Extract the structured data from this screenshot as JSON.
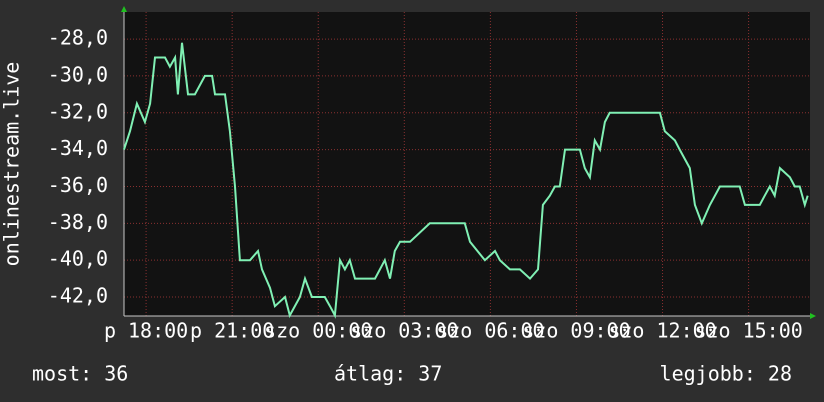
{
  "chart_data": {
    "type": "line",
    "y_label": "onlinestream.live",
    "x": [
      17.23,
      17.44,
      17.68,
      17.96,
      18.14,
      18.31,
      18.66,
      18.83,
      19.01,
      19.11,
      19.25,
      19.46,
      19.7,
      20.05,
      20.3,
      20.4,
      20.75,
      20.92,
      21.1,
      21.27,
      21.62,
      21.9,
      22.04,
      22.32,
      22.49,
      22.84,
      23.01,
      23.36,
      23.54,
      23.78,
      24.23,
      24.41,
      24.58,
      24.76,
      24.93,
      25.1,
      25.28,
      25.63,
      25.98,
      26.32,
      26.5,
      26.67,
      26.85,
      27.2,
      27.89,
      29.11,
      29.29,
      29.81,
      30.16,
      30.33,
      30.68,
      31.03,
      31.38,
      31.66,
      31.83,
      32.07,
      32.25,
      32.42,
      32.6,
      33.12,
      33.29,
      33.47,
      33.64,
      33.82,
      33.99,
      34.16,
      35.91,
      36.08,
      36.43,
      36.6,
      36.95,
      37.13,
      37.37,
      37.65,
      38.0,
      38.69,
      38.87,
      39.39,
      39.56,
      39.74,
      39.91,
      40.09,
      40.44,
      40.61,
      40.78,
      40.96,
      41.06
    ],
    "values": [
      -34,
      -33,
      -31.5,
      -32.5,
      -31.5,
      -29,
      -29,
      -29.5,
      -29,
      -31,
      -28.2,
      -31,
      -31,
      -30,
      -30,
      -31,
      -31,
      -33,
      -36,
      -40,
      -40,
      -39.5,
      -40.5,
      -41.5,
      -42.5,
      -42,
      -43,
      -42,
      -41,
      -42,
      -42,
      -42.5,
      -43,
      -40,
      -40.5,
      -40,
      -41,
      -41,
      -41,
      -40,
      -41,
      -39.5,
      -39,
      -39,
      -38,
      -38,
      -39,
      -40,
      -39.5,
      -40,
      -40.5,
      -40.5,
      -41,
      -40.5,
      -37,
      -36.5,
      -36,
      -36,
      -34,
      -34,
      -35,
      -35.5,
      -33.5,
      -34,
      -32.5,
      -32,
      -32,
      -33,
      -33.5,
      -34,
      -35,
      -37,
      -38,
      -37,
      -36,
      -36,
      -37,
      -37,
      -36.5,
      -36,
      -36.5,
      -35,
      -35.5,
      -36,
      -36,
      -37,
      -36.5
    ],
    "color": "#80f0b4",
    "xlim": [
      17.23,
      41.14
    ],
    "xticks": [
      {
        "value": 18,
        "label": "p 18:00"
      },
      {
        "value": 21,
        "label": "p 21:00"
      },
      {
        "value": 24,
        "label": "szo 00:00"
      },
      {
        "value": 27,
        "label": "szo 03:00"
      },
      {
        "value": 30,
        "label": "szo 06:00"
      },
      {
        "value": 33,
        "label": "szo 09:00"
      },
      {
        "value": 36,
        "label": "szo 12:00"
      },
      {
        "value": 39,
        "label": "szo 15:00"
      }
    ],
    "ylim": [
      -43.03,
      -26.53
    ],
    "yticks": [
      {
        "value": -42,
        "label": "-42,0"
      },
      {
        "value": -40,
        "label": "-40,0"
      },
      {
        "value": -38,
        "label": "-38,0"
      },
      {
        "value": -36,
        "label": "-36,0"
      },
      {
        "value": -34,
        "label": "-34,0"
      },
      {
        "value": -32,
        "label": "-32,0"
      },
      {
        "value": -30,
        "label": "-30,0"
      },
      {
        "value": -28,
        "label": "-28,0"
      }
    ],
    "grid": true
  },
  "footer": {
    "current": "most: 36",
    "average": "átlag: 37",
    "best": "legjobb: 28"
  }
}
